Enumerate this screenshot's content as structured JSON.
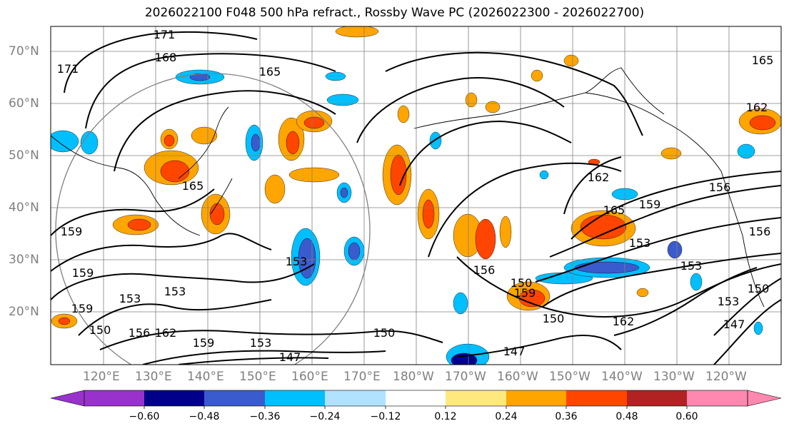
{
  "title": "2026022100 F048 500 hPa refract., Rossby Wave PC (2026022300 - 2026022700)",
  "lat_labels": [
    "70°N",
    "60°N",
    "50°N",
    "40°N",
    "30°N",
    "20°N"
  ],
  "lon_labels": [
    "120°E",
    "130°E",
    "140°E",
    "150°E",
    "160°E",
    "170°E",
    "180°W",
    "170°W",
    "160°W",
    "150°W",
    "140°W",
    "130°W",
    "120°W"
  ],
  "colorbar": {
    "ticks": [
      "−0.60",
      "−0.48",
      "−0.36",
      "−0.24",
      "−0.12",
      "0.12",
      "0.24",
      "0.36",
      "0.48",
      "0.60"
    ],
    "colors": [
      "#9932cc",
      "#00008b",
      "#3a5bcd",
      "#00bfff",
      "#b0e2ff",
      "#ffffff",
      "#ffe97f",
      "#ffa500",
      "#ff4500",
      "#b22222",
      "#ff88b0"
    ]
  },
  "contour_labels": [
    "171",
    "168",
    "165",
    "171",
    "165",
    "162",
    "165",
    "159",
    "156",
    "153",
    "159",
    "159",
    "153",
    "159",
    "150",
    "156",
    "162",
    "159",
    "153",
    "150",
    "147",
    "147",
    "156",
    "150",
    "150",
    "159",
    "153",
    "162",
    "153",
    "153",
    "147",
    "150",
    "156",
    "165",
    "162",
    "153"
  ]
}
